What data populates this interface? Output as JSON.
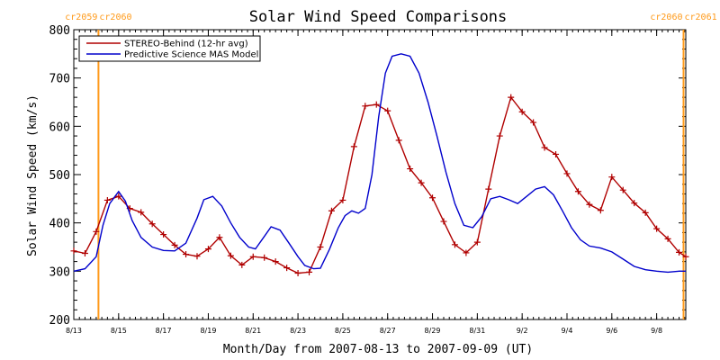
{
  "chart_data": {
    "type": "line",
    "title": "Solar Wind Speed Comparisons",
    "xlabel": "Month/Day from 2007-08-13 to 2007-09-09 (UT)",
    "ylabel": "Solar Wind Speed (km/s)",
    "xlim": [
      0,
      27.3
    ],
    "ylim": [
      200,
      800
    ],
    "yticks": [
      200,
      300,
      400,
      500,
      600,
      700,
      800
    ],
    "xticks": [
      {
        "day": 0,
        "label": "8/13"
      },
      {
        "day": 2,
        "label": "8/15"
      },
      {
        "day": 4,
        "label": "8/17"
      },
      {
        "day": 6,
        "label": "8/19"
      },
      {
        "day": 8,
        "label": "8/21"
      },
      {
        "day": 10,
        "label": "8/23"
      },
      {
        "day": 12,
        "label": "8/25"
      },
      {
        "day": 14,
        "label": "8/27"
      },
      {
        "day": 16,
        "label": "8/29"
      },
      {
        "day": 18,
        "label": "8/31"
      },
      {
        "day": 20,
        "label": "9/2"
      },
      {
        "day": 22,
        "label": "9/4"
      },
      {
        "day": 24,
        "label": "9/6"
      },
      {
        "day": 26,
        "label": "9/8"
      }
    ],
    "boundaries": [
      {
        "day": 1.1,
        "label_left": "cr2059",
        "label_right": "cr2060"
      },
      {
        "day": 27.2,
        "label_left": "cr2060",
        "label_right": "cr2061"
      }
    ],
    "series": [
      {
        "name": "STEREO-Behind (12-hr avg)",
        "color": "#b00000",
        "markers": true,
        "x": [
          0,
          0.5,
          1,
          1.5,
          2,
          2.5,
          3,
          3.5,
          4,
          4.5,
          5,
          5.5,
          6,
          6.5,
          7,
          7.5,
          8,
          8.5,
          9,
          9.5,
          10,
          10.5,
          11,
          11.5,
          12,
          12.5,
          13,
          13.5,
          14,
          14.5,
          15,
          15.5,
          16,
          16.5,
          17,
          17.5,
          18,
          18.5,
          19,
          19.5,
          20,
          20.5,
          21,
          21.5,
          22,
          22.5,
          23,
          23.5,
          24,
          24.5,
          25,
          25.5,
          26,
          26.5,
          27,
          27.3
        ],
        "y": [
          342,
          337,
          382,
          447,
          455,
          430,
          422,
          398,
          376,
          354,
          335,
          331,
          346,
          370,
          332,
          313,
          330,
          328,
          320,
          307,
          296,
          298,
          350,
          425,
          447,
          558,
          642,
          645,
          632,
          571,
          512,
          483,
          452,
          403,
          355,
          338,
          360,
          470,
          580,
          660,
          630,
          608,
          556,
          542,
          502,
          465,
          438,
          426,
          495,
          468,
          441,
          421,
          388,
          367,
          339,
          330
        ]
      },
      {
        "name": "Predictive Science MAS Model",
        "color": "#0000cc",
        "markers": false,
        "x": [
          0,
          0.5,
          1,
          1.3,
          1.6,
          2,
          2.3,
          2.6,
          3,
          3.5,
          4,
          4.5,
          5,
          5.5,
          5.8,
          6.2,
          6.6,
          7,
          7.4,
          7.8,
          8.1,
          8.5,
          8.8,
          9.2,
          9.6,
          10,
          10.3,
          10.7,
          11,
          11.4,
          11.8,
          12.1,
          12.4,
          12.7,
          13,
          13.3,
          13.6,
          13.9,
          14.2,
          14.6,
          15,
          15.4,
          15.8,
          16.2,
          16.6,
          17,
          17.4,
          17.8,
          18.2,
          18.6,
          19,
          19.4,
          19.8,
          20.2,
          20.6,
          21,
          21.4,
          21.8,
          22.2,
          22.6,
          23,
          23.5,
          24,
          24.5,
          25,
          25.5,
          26,
          26.5,
          27,
          27.3
        ],
        "y": [
          300,
          305,
          330,
          395,
          440,
          465,
          445,
          405,
          370,
          350,
          343,
          342,
          358,
          410,
          448,
          455,
          435,
          400,
          370,
          350,
          346,
          372,
          392,
          385,
          358,
          330,
          312,
          305,
          306,
          345,
          390,
          415,
          425,
          420,
          430,
          500,
          620,
          710,
          745,
          750,
          745,
          710,
          650,
          580,
          505,
          440,
          395,
          390,
          413,
          450,
          455,
          448,
          440,
          455,
          470,
          475,
          458,
          425,
          390,
          365,
          352,
          348,
          340,
          325,
          310,
          303,
          300,
          298,
          300,
          300
        ]
      }
    ],
    "legend_position": "top-left"
  }
}
